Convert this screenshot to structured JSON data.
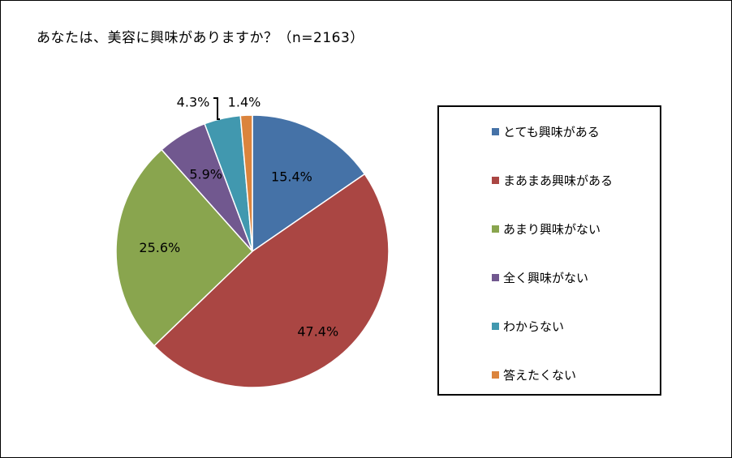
{
  "chart_data": {
    "type": "pie",
    "title": "あなたは、美容に興味がありますか？（n=2163）",
    "categories": [
      "とても興味がある",
      "まあまあ興味がある",
      "あまり興味がない",
      "全く興味がない",
      "わからない",
      "答えたくない"
    ],
    "values": [
      15.4,
      47.4,
      25.6,
      5.9,
      4.3,
      1.4
    ],
    "data_labels": [
      "15.4%",
      "47.4%",
      "25.6%",
      "5.9%",
      "4.3%",
      "1.4%"
    ],
    "colors": [
      "#4572A7",
      "#AA4643",
      "#89A54E",
      "#71588F",
      "#4198AF",
      "#DB843D"
    ],
    "legend_position": "right"
  }
}
